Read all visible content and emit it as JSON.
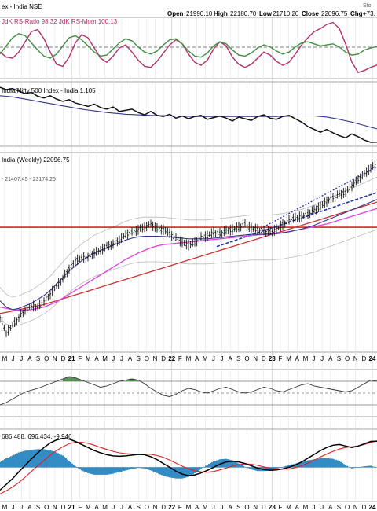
{
  "header": {
    "instrument": "ex - India NSE",
    "open_label": "Open",
    "open": "21990.10",
    "high_label": "High",
    "high": "22180.70",
    "low_label": "Low",
    "low": "21710.20",
    "close_label": "Close",
    "close": "22096.75",
    "chg_label": "Chg",
    "chg": "+73.",
    "source": "Sto"
  },
  "colors": {
    "rs_ratio": "#b0306a",
    "rs_mom": "#3f8f3f",
    "ratio_line": "#111111",
    "ma_blue": "#34348c",
    "ma_magenta": "#e040e0",
    "ma_red": "#cc3333",
    "price": "#111111",
    "resistance": "#cc0000",
    "channel": "#2233aa",
    "rsi": "#333333",
    "rsi_fill": "#3f7f3f",
    "macd": "#000000",
    "signal": "#dd2222",
    "hist": "#1f7fbf"
  },
  "chart_data": [
    {
      "type": "line",
      "panel": "RRG indicators",
      "legend_text": "JdK RS-Ratio 98.32  JdK RS-Mom 100.13",
      "x": [
        0,
        4,
        8,
        12,
        16,
        20,
        24,
        28,
        32,
        36,
        40,
        44,
        48,
        52,
        56,
        60,
        64,
        68,
        72,
        76,
        80,
        84,
        88,
        92,
        96,
        100,
        104,
        108,
        112,
        116,
        120,
        124,
        128,
        132,
        136,
        140,
        144,
        148,
        152,
        156,
        160,
        164,
        168,
        172,
        176,
        180,
        184,
        188,
        192,
        196,
        200,
        204,
        208,
        212,
        216,
        220,
        224,
        228,
        232,
        236,
        240
      ],
      "series": [
        {
          "name": "JdK RS-Ratio 98.32",
          "values": [
            99.6,
            99.1,
            99.0,
            99.6,
            100.6,
            101.6,
            101.8,
            100.9,
            99.6,
            98.4,
            98.2,
            99.1,
            100.5,
            101.3,
            101.0,
            100.0,
            99.0,
            98.6,
            99.2,
            100.0,
            100.3,
            99.6,
            98.8,
            98.2,
            98.1,
            98.7,
            99.5,
            100.3,
            100.8,
            100.4,
            99.4,
            98.6,
            98.3,
            98.8,
            99.9,
            100.6,
            100.2,
            99.1,
            98.4,
            98.1,
            98.4,
            99.0,
            99.6,
            99.3,
            98.7,
            98.3,
            98.6,
            99.4,
            100.3,
            101.0,
            101.6,
            101.9,
            102.3,
            102.5,
            101.9,
            100.4,
            98.6,
            97.6,
            97.8,
            98.1,
            98.32
          ]
        },
        {
          "name": "JdK RS-Mom 100.13",
          "values": [
            99.4,
            100.2,
            101.0,
            101.4,
            101.2,
            100.5,
            99.8,
            99.2,
            99.0,
            99.4,
            100.2,
            101.0,
            101.2,
            100.8,
            100.2,
            99.6,
            99.2,
            99.3,
            99.9,
            100.5,
            100.9,
            100.7,
            100.1,
            99.6,
            99.4,
            99.7,
            100.3,
            100.8,
            100.9,
            100.4,
            99.7,
            99.2,
            99.1,
            99.5,
            100.2,
            100.6,
            100.4,
            99.8,
            99.3,
            99.2,
            99.5,
            100.0,
            100.3,
            100.1,
            99.7,
            99.4,
            99.6,
            100.1,
            100.5,
            100.6,
            100.4,
            100.2,
            100.3,
            100.4,
            100.1,
            99.6,
            99.3,
            99.4,
            99.8,
            100.0,
            100.13
          ]
        }
      ],
      "ylim": [
        97,
        103
      ]
    },
    {
      "type": "line",
      "panel": "Ratio",
      "legend_text": "India/Nifty 500 Index - India 1.105",
      "x": [
        0,
        4,
        8,
        12,
        16,
        20,
        24,
        28,
        32,
        36,
        40,
        44,
        48,
        52,
        56,
        60,
        64,
        68,
        72,
        76,
        80,
        84,
        88,
        92,
        96,
        100,
        104,
        108,
        112,
        116,
        120,
        124,
        128,
        132,
        136,
        140,
        144,
        148,
        152,
        156,
        160,
        164,
        168,
        172,
        176,
        180,
        184,
        188,
        192,
        196,
        200,
        204,
        208,
        212,
        216,
        220,
        224,
        228,
        232,
        236,
        240
      ],
      "series": [
        {
          "name": "India/Nifty 500 Index - India 1.105",
          "values": [
            1.3,
            1.292,
            1.296,
            1.286,
            1.278,
            1.282,
            1.268,
            1.262,
            1.27,
            1.258,
            1.25,
            1.256,
            1.244,
            1.238,
            1.232,
            1.24,
            1.228,
            1.222,
            1.23,
            1.214,
            1.218,
            1.222,
            1.21,
            1.202,
            1.214,
            1.2,
            1.196,
            1.204,
            1.19,
            1.198,
            1.188,
            1.196,
            1.2,
            1.186,
            1.192,
            1.198,
            1.19,
            1.18,
            1.194,
            1.188,
            1.182,
            1.196,
            1.202,
            1.19,
            1.186,
            1.196,
            1.2,
            1.188,
            1.176,
            1.16,
            1.15,
            1.14,
            1.15,
            1.138,
            1.128,
            1.12,
            1.134,
            1.124,
            1.112,
            1.104,
            1.105
          ]
        },
        {
          "name": "",
          "values": [
            1.27,
            1.268,
            1.266,
            1.262,
            1.258,
            1.254,
            1.25,
            1.246,
            1.242,
            1.238,
            1.234,
            1.23,
            1.226,
            1.222,
            1.219,
            1.216,
            1.213,
            1.21,
            1.208,
            1.206,
            1.204,
            1.203,
            1.202,
            1.201,
            1.2,
            1.199,
            1.199,
            1.198,
            1.198,
            1.197,
            1.197,
            1.196,
            1.196,
            1.196,
            1.196,
            1.196,
            1.196,
            1.196,
            1.196,
            1.196,
            1.196,
            1.196,
            1.196,
            1.196,
            1.196,
            1.197,
            1.197,
            1.198,
            1.198,
            1.198,
            1.198,
            1.196,
            1.194,
            1.19,
            1.186,
            1.181,
            1.176,
            1.17,
            1.164,
            1.158,
            1.152
          ]
        }
      ],
      "ylim": [
        1.09,
        1.32
      ]
    },
    {
      "type": "line",
      "panel": "Price",
      "legend_text": "India (Weekly) 22096.75",
      "ma_legend": "- 21407.45 - 23174.25",
      "x": [
        0,
        4,
        8,
        12,
        16,
        20,
        24,
        28,
        32,
        36,
        40,
        44,
        48,
        52,
        56,
        60,
        64,
        68,
        72,
        76,
        80,
        84,
        88,
        92,
        96,
        100,
        104,
        108,
        112,
        116,
        120,
        124,
        128,
        132,
        136,
        140,
        144,
        148,
        152,
        156,
        160,
        164,
        168,
        172,
        176,
        180,
        184,
        188,
        192,
        196,
        200,
        204,
        208,
        212,
        216,
        220,
        224,
        228,
        232,
        236,
        240
      ],
      "series": [
        {
          "name": "India (Weekly) 22096.75",
          "values": [
            10200,
            9000,
            9600,
            10200,
            10800,
            11100,
            11000,
            11500,
            12000,
            12600,
            13200,
            14000,
            14600,
            14800,
            14900,
            15200,
            15400,
            15700,
            15900,
            16200,
            16600,
            16800,
            17000,
            17200,
            17400,
            17100,
            17000,
            16700,
            16300,
            16000,
            15800,
            16000,
            16400,
            16500,
            16800,
            16700,
            16900,
            17000,
            17200,
            17400,
            17100,
            17000,
            16900,
            16800,
            17000,
            17400,
            17700,
            17900,
            18000,
            18200,
            18500,
            18800,
            19200,
            19500,
            19700,
            19900,
            20400,
            20900,
            21300,
            21800,
            22096.75
          ]
        },
        {
          "name": "",
          "values": [
            11500,
            11000,
            10800,
            10900,
            11100,
            11300,
            11600,
            11900,
            12300,
            12800,
            13300,
            13800,
            14200,
            14600,
            14900,
            15200,
            15400,
            15600,
            15800,
            16000,
            16200,
            16350,
            16450,
            16500,
            16500,
            16500,
            16480,
            16450,
            16400,
            16350,
            16300,
            16300,
            16300,
            16300,
            16350,
            16400,
            16450,
            16500,
            16550,
            16600,
            16650,
            16650,
            16650,
            16650,
            16700,
            16750,
            16850,
            16950,
            17050,
            17200,
            17350,
            17550,
            17750,
            17950,
            18150,
            18350,
            18550,
            18750,
            18950,
            19150,
            19350
          ]
        },
        {
          "name": "",
          "values": [
            11000,
            10900,
            10800,
            10750,
            10750,
            10800,
            10900,
            11000,
            11200,
            11400,
            11700,
            12000,
            12300,
            12600,
            12900,
            13200,
            13500,
            13800,
            14100,
            14400,
            14700,
            14950,
            15200,
            15400,
            15600,
            15750,
            15850,
            15900,
            15950,
            16000,
            16050,
            16100,
            16150,
            16200,
            16250,
            16300,
            16350,
            16400,
            16450,
            16500,
            16550,
            16600,
            16650,
            16700,
            16750,
            16800,
            16850,
            16950,
            17050,
            17150,
            17250,
            17350,
            17450,
            17600,
            17750,
            17900,
            18050,
            18200,
            18350,
            18500,
            18650
          ]
        },
        {
          "name": "",
          "values": [
            10500,
            10600,
            10700,
            10800,
            10900,
            11000,
            11100,
            11200,
            11350,
            11500,
            11650,
            11800,
            11950,
            12100,
            12250,
            12400,
            12550,
            12700,
            12850,
            13000,
            13150,
            13300,
            13450,
            13600,
            13750,
            13900,
            14050,
            14200,
            14350,
            14500,
            14650,
            14800,
            14950,
            15100,
            15250,
            15400,
            15550,
            15700,
            15850,
            16000,
            16150,
            16300,
            16450,
            16600,
            16750,
            16900,
            17050,
            17200,
            17350,
            17500,
            17650,
            17800,
            17950,
            18100,
            18250,
            18400,
            18550,
            18700,
            18850,
            19000,
            19150
          ]
        }
      ],
      "resistance_level": 17200,
      "ylim": [
        7500,
        23000
      ]
    },
    {
      "type": "line",
      "panel": "RSI",
      "x": [
        0,
        4,
        8,
        12,
        16,
        20,
        24,
        28,
        32,
        36,
        40,
        44,
        48,
        52,
        56,
        60,
        64,
        68,
        72,
        76,
        80,
        84,
        88,
        92,
        96,
        100,
        104,
        108,
        112,
        116,
        120,
        124,
        128,
        132,
        136,
        140,
        144,
        148,
        152,
        156,
        160,
        164,
        168,
        172,
        176,
        180,
        184,
        188,
        192,
        196,
        200,
        204,
        208,
        212,
        216,
        220,
        224,
        228,
        232,
        236,
        240
      ],
      "series": [
        {
          "name": "",
          "values": [
            30,
            34,
            40,
            46,
            52,
            55,
            58,
            62,
            66,
            70,
            74,
            78,
            76,
            72,
            68,
            64,
            60,
            62,
            66,
            70,
            72,
            74,
            72,
            66,
            58,
            52,
            46,
            44,
            48,
            54,
            58,
            56,
            52,
            50,
            54,
            58,
            60,
            56,
            52,
            50,
            52,
            56,
            60,
            58,
            54,
            52,
            56,
            60,
            64,
            66,
            62,
            60,
            58,
            56,
            54,
            52,
            54,
            60,
            66,
            72,
            70
          ]
        }
      ],
      "ylim": [
        10,
        90
      ],
      "levels": [
        70,
        50,
        30
      ]
    },
    {
      "type": "line",
      "panel": "MACD",
      "legend_text": "686.488, 696.434, -9.946",
      "x": [
        0,
        4,
        8,
        12,
        16,
        20,
        24,
        28,
        32,
        36,
        40,
        44,
        48,
        52,
        56,
        60,
        64,
        68,
        72,
        76,
        80,
        84,
        88,
        92,
        96,
        100,
        104,
        108,
        112,
        116,
        120,
        124,
        128,
        132,
        136,
        140,
        144,
        148,
        152,
        156,
        160,
        164,
        168,
        172,
        176,
        180,
        184,
        188,
        192,
        196,
        200,
        204,
        208,
        212,
        216,
        220,
        224,
        228,
        232,
        236,
        240
      ],
      "series": [
        {
          "name": "686.488",
          "values": [
            -600,
            -450,
            -300,
            -120,
            50,
            220,
            380,
            520,
            640,
            720,
            760,
            740,
            680,
            600,
            520,
            440,
            380,
            330,
            300,
            290,
            300,
            320,
            340,
            330,
            280,
            200,
            100,
            0,
            -100,
            -180,
            -220,
            -200,
            -150,
            -80,
            0,
            80,
            140,
            160,
            140,
            100,
            40,
            -20,
            -60,
            -80,
            -70,
            -40,
            0,
            60,
            140,
            240,
            340,
            440,
            520,
            580,
            600,
            560,
            520,
            560,
            620,
            680,
            686
          ]
        },
        {
          "name": "696.434",
          "values": [
            -700,
            -620,
            -520,
            -400,
            -260,
            -110,
            40,
            180,
            320,
            440,
            540,
            620,
            660,
            660,
            630,
            580,
            520,
            470,
            420,
            380,
            360,
            350,
            350,
            350,
            340,
            310,
            260,
            190,
            110,
            30,
            -40,
            -90,
            -120,
            -130,
            -110,
            -70,
            -20,
            30,
            70,
            90,
            80,
            50,
            10,
            -20,
            -40,
            -50,
            -40,
            -10,
            40,
            110,
            190,
            270,
            350,
            420,
            480,
            520,
            540,
            560,
            600,
            650,
            696
          ]
        }
      ],
      "ylim": [
        -900,
        1000
      ]
    }
  ],
  "x_axis": {
    "labels": [
      "M",
      "J",
      "J",
      "A",
      "S",
      "O",
      "N",
      "D",
      "21",
      "F",
      "M",
      "A",
      "M",
      "J",
      "J",
      "A",
      "S",
      "O",
      "N",
      "D",
      "22",
      "F",
      "M",
      "A",
      "M",
      "J",
      "J",
      "A",
      "S",
      "O",
      "N",
      "D",
      "23",
      "F",
      "M",
      "A",
      "M",
      "J",
      "J",
      "A",
      "S",
      "O",
      "N",
      "D",
      "24"
    ],
    "bold_labels": [
      "21",
      "22",
      "23",
      "24"
    ]
  }
}
